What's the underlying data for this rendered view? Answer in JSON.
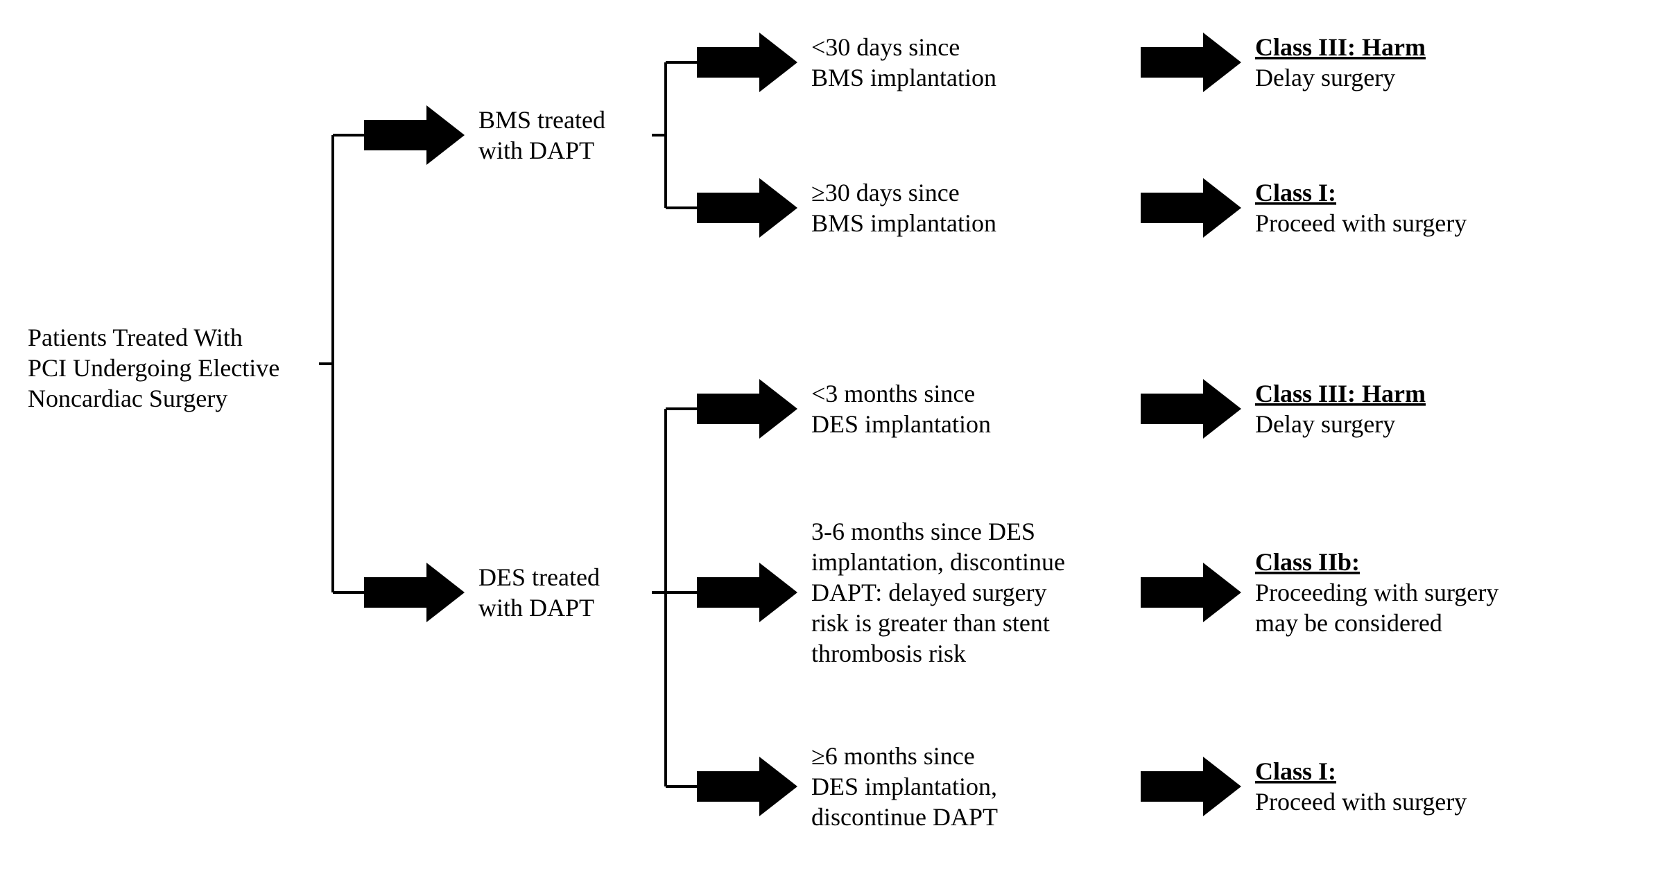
{
  "diagram": {
    "type": "flowchart-tree",
    "background_color": "#ffffff",
    "line_color": "#000000",
    "arrow_fill": "#000000",
    "line_width": 4,
    "font_family": "Times New Roman",
    "font_size_pt": 36,
    "root": {
      "lines": [
        "Patients Treated With",
        "PCI Undergoing Elective",
        "Noncardiac Surgery"
      ]
    },
    "branches": [
      {
        "id": "bms",
        "label_lines": [
          "BMS treated",
          "with DAPT"
        ],
        "children": [
          {
            "id": "bms_lt30",
            "label_lines": [
              "<30 days since",
              "BMS implantation"
            ],
            "class_label": "Class III: Harm",
            "class_action_lines": [
              "Delay surgery"
            ]
          },
          {
            "id": "bms_ge30",
            "label_lines": [
              "≥30 days since",
              "BMS implantation"
            ],
            "class_label": "Class I:",
            "class_action_lines": [
              "Proceed with surgery"
            ]
          }
        ]
      },
      {
        "id": "des",
        "label_lines": [
          "DES treated",
          "with DAPT"
        ],
        "children": [
          {
            "id": "des_lt3",
            "label_lines": [
              "<3 months since",
              "DES implantation"
            ],
            "class_label": "Class III: Harm",
            "class_action_lines": [
              "Delay surgery"
            ]
          },
          {
            "id": "des_3to6",
            "label_lines": [
              "3-6 months since DES",
              "implantation, discontinue",
              "DAPT: delayed surgery",
              "risk is greater than stent",
              "thrombosis risk"
            ],
            "class_label": "Class IIb:",
            "class_action_lines": [
              "Proceeding with surgery",
              "may be considered"
            ]
          },
          {
            "id": "des_ge6",
            "label_lines": [
              "≥6 months since",
              "DES implantation,",
              "discontinue DAPT"
            ],
            "class_label": "Class I:",
            "class_action_lines": [
              "Proceed with surgery"
            ]
          }
        ]
      }
    ]
  }
}
